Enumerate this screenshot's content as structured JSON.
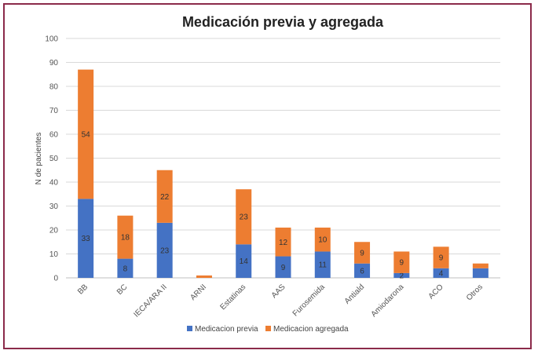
{
  "chart_data": {
    "type": "bar",
    "stacked": true,
    "title": "Medicación previa y agregada",
    "xlabel": "",
    "ylabel": "N de pacientes",
    "ylim": [
      0,
      100
    ],
    "yticks": [
      0,
      10,
      20,
      30,
      40,
      50,
      60,
      70,
      80,
      90,
      100
    ],
    "grid": true,
    "legend_position": "bottom",
    "categories": [
      "BB",
      "BC",
      "IECA/ARA II",
      "ARNI",
      "Estatinas",
      "AAS",
      "Furosemida",
      "Antiald",
      "Amiodarona",
      "ACO",
      "Otros"
    ],
    "series": [
      {
        "name": "Medicacion previa",
        "color": "#4472c4",
        "values": [
          33,
          8,
          23,
          0,
          14,
          9,
          11,
          6,
          2,
          4,
          4
        ],
        "labels": [
          "33",
          "8",
          "23",
          "",
          "14",
          "9",
          "11",
          "6",
          "2",
          "4",
          ""
        ]
      },
      {
        "name": "Medicacion agregada",
        "color": "#ed7d31",
        "values": [
          54,
          18,
          22,
          1,
          23,
          12,
          10,
          9,
          9,
          9,
          2
        ],
        "labels": [
          "54",
          "18",
          "22",
          "",
          "23",
          "12",
          "10",
          "9",
          "9",
          "9",
          ""
        ]
      }
    ]
  }
}
